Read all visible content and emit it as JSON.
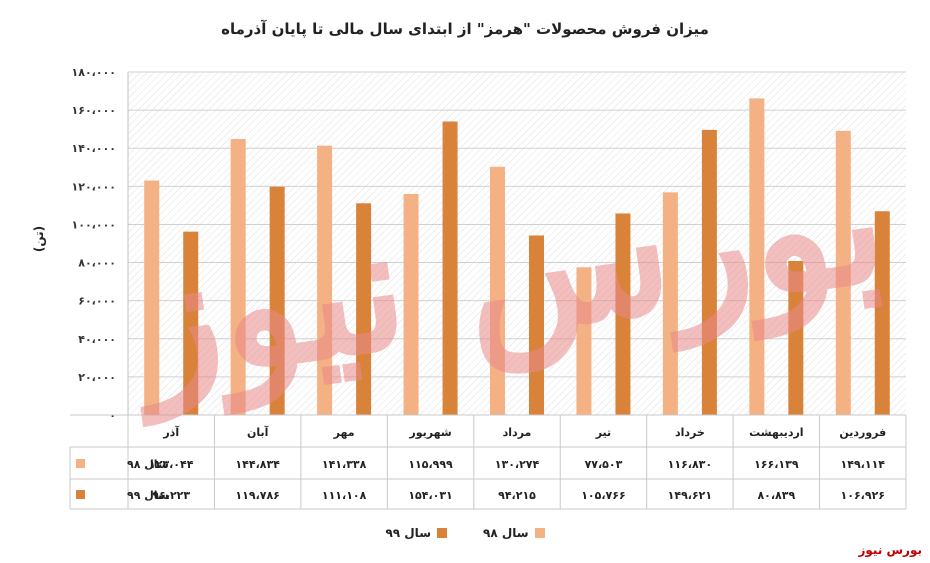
{
  "chart_data": {
    "type": "bar",
    "title": "میزان فروش محصولات \"هرمز\" از ابتدای سال مالی تا پایان آذرماه",
    "ylabel": "(تن)",
    "ylim": [
      0,
      180000
    ],
    "y_ticks": [
      "۰",
      "۲۰،۰۰۰",
      "۴۰،۰۰۰",
      "۶۰،۰۰۰",
      "۸۰،۰۰۰",
      "۱۰۰،۰۰۰",
      "۱۲۰،۰۰۰",
      "۱۴۰،۰۰۰",
      "۱۶۰،۰۰۰",
      "۱۸۰،۰۰۰"
    ],
    "categories": [
      "فروردین",
      "اردیبهشت",
      "خرداد",
      "تیر",
      "مرداد",
      "شهریور",
      "مهر",
      "آبان",
      "آذر"
    ],
    "grid": true,
    "legend_position": "bottom",
    "series": [
      {
        "name": "سال ۹۸",
        "color": "#f4b183",
        "values": [
          149114,
          166139,
          116830,
          77503,
          130274,
          115999,
          141338,
          144834,
          123044
        ],
        "labels": [
          "۱۴۹،۱۱۴",
          "۱۶۶،۱۳۹",
          "۱۱۶،۸۳۰",
          "۷۷،۵۰۳",
          "۱۳۰،۲۷۴",
          "۱۱۵،۹۹۹",
          "۱۴۱،۳۳۸",
          "۱۴۴،۸۳۴",
          "۱۲۳،۰۴۴"
        ]
      },
      {
        "name": "سال ۹۹",
        "color": "#d9833a",
        "values": [
          106926,
          80839,
          149621,
          105766,
          94215,
          154031,
          111108,
          119786,
          96223
        ],
        "labels": [
          "۱۰۶،۹۲۶",
          "۸۰،۸۳۹",
          "۱۴۹،۶۲۱",
          "۱۰۵،۷۶۶",
          "۹۴،۲۱۵",
          "۱۵۴،۰۳۱",
          "۱۱۱،۱۰۸",
          "۱۱۹،۷۸۶",
          "۹۶،۲۲۳"
        ]
      }
    ]
  },
  "brand": "بورس نیوز"
}
